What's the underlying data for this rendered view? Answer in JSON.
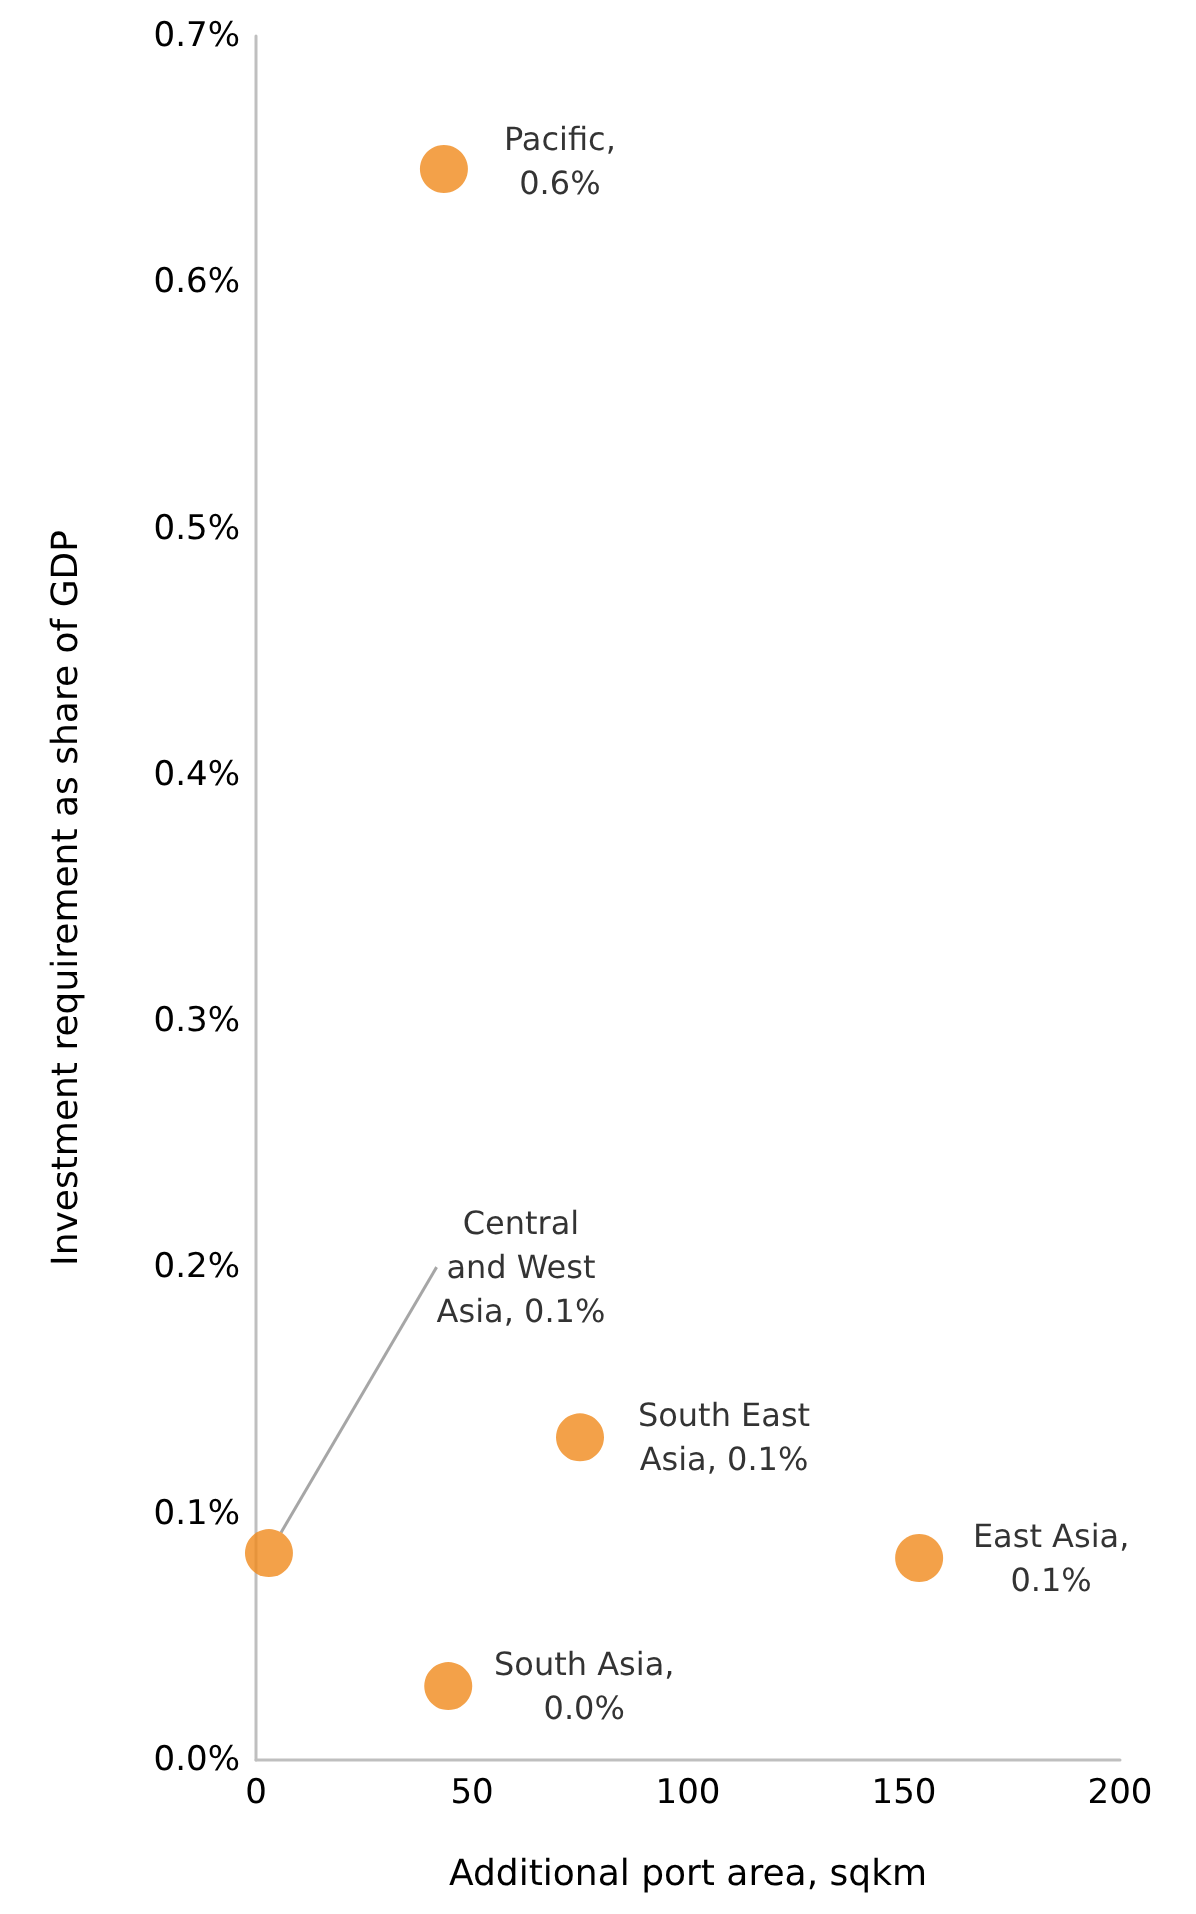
{
  "chart_data": {
    "type": "scatter",
    "xlabel": "Additional port area, sqkm",
    "ylabel": "Investment requirement as share of GDP",
    "x": [
      43.5,
      3,
      75,
      153.5,
      44.5
    ],
    "values": [
      0.646,
      0.084,
      0.131,
      0.082,
      0.03
    ],
    "value_labels": [
      "Pacific,\n0.6%",
      "Central\nand West\nAsia, 0.1%",
      "South East\nAsia, 0.1%",
      "East Asia,\n0.1%",
      "South Asia,\n0.0%"
    ],
    "color": "#f08a1c",
    "marker": "circle",
    "grid": false,
    "xlim": [
      0,
      200
    ],
    "xticks": [
      0,
      50,
      100,
      150,
      200
    ],
    "ylim": [
      0,
      0.7
    ],
    "yticks": [
      {
        "value": 0,
        "label": "0.0%"
      },
      {
        "value": 0.1,
        "label": "0.1%"
      },
      {
        "value": 0.2,
        "label": "0.2%"
      },
      {
        "value": 0.3,
        "label": "0.3%"
      },
      {
        "value": 0.4,
        "label": "0.4%"
      },
      {
        "value": 0.5,
        "label": "0.5%"
      },
      {
        "value": 0.6,
        "label": "0.6%"
      },
      {
        "value": 0.7,
        "label": "0.7%"
      }
    ]
  }
}
